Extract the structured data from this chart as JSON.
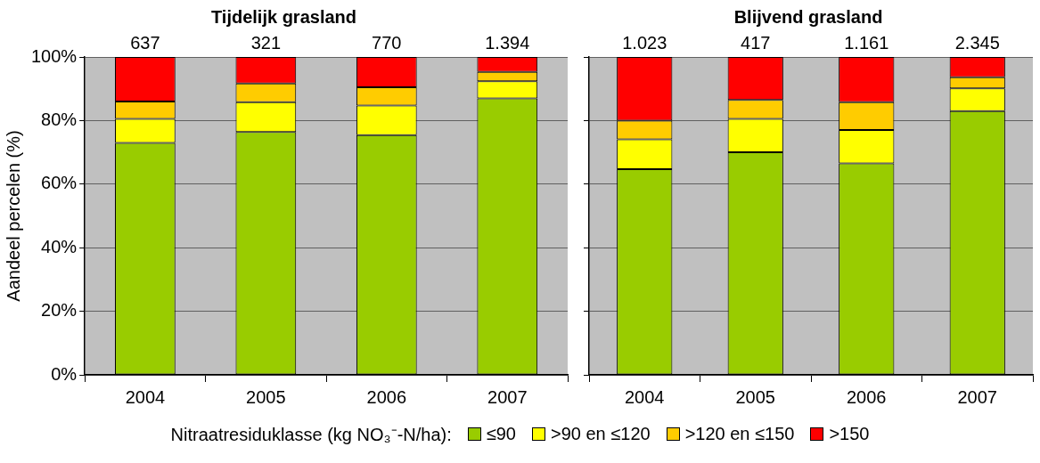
{
  "chart_data": [
    {
      "type": "bar",
      "title": "Tijdelijk grasland",
      "ylabel": "Aandeel percelen (%)",
      "categories": [
        "2004",
        "2005",
        "2006",
        "2007"
      ],
      "stacked": true,
      "series": [
        {
          "name": "≤90",
          "color": "#99cc00",
          "values": [
            73,
            76.4,
            75.4,
            87
          ]
        },
        {
          "name": ">90 en ≤120",
          "color": "#ffff00",
          "values": [
            7.5,
            9.4,
            9.3,
            5.4
          ]
        },
        {
          "name": ">120 en ≤150",
          "color": "#ffcc00",
          "values": [
            5.5,
            5.9,
            5.8,
            2.9
          ]
        },
        {
          "name": ">150",
          "color": "#ff0000",
          "values": [
            14,
            8.3,
            9.5,
            4.7
          ]
        }
      ],
      "annotations": [
        "637",
        "321",
        "770",
        "1.394"
      ],
      "ylim": [
        0,
        100
      ],
      "yticks": [
        {
          "value": 0,
          "label": "0%"
        },
        {
          "value": 20,
          "label": "20%"
        },
        {
          "value": 40,
          "label": "40%"
        },
        {
          "value": 60,
          "label": "60%"
        },
        {
          "value": 80,
          "label": "80%"
        },
        {
          "value": 100,
          "label": "100%"
        }
      ],
      "grid": "y",
      "legend": "bottom",
      "legend_title": "Nitraatresiduklasse (kg NO₃⁻-N/ha):"
    },
    {
      "type": "bar",
      "title": "Blijvend grasland",
      "categories": [
        "2004",
        "2005",
        "2006",
        "2007"
      ],
      "stacked": true,
      "series": [
        {
          "color": "#99cc00",
          "values": [
            64.7,
            70,
            66.5,
            83
          ]
        },
        {
          "color": "#ffff00",
          "values": [
            9.4,
            10.5,
            10.5,
            7.1
          ]
        },
        {
          "color": "#ffcc00",
          "values": [
            5.9,
            6,
            8.8,
            3.5
          ]
        },
        {
          "color": "#ff0000",
          "values": [
            20,
            13.5,
            14.2,
            6.4
          ]
        }
      ],
      "annotations": [
        "1.023",
        "417",
        "1.161",
        "2.345"
      ],
      "ylim": [
        0,
        100
      ],
      "yticks": [
        {
          "value": 0,
          "label": null
        },
        {
          "value": 20,
          "label": null
        },
        {
          "value": 40,
          "label": null
        },
        {
          "value": 60,
          "label": null
        },
        {
          "value": 80,
          "label": null
        },
        {
          "value": 100,
          "label": null
        }
      ],
      "grid": "y",
      "tick_labels": "x"
    }
  ]
}
